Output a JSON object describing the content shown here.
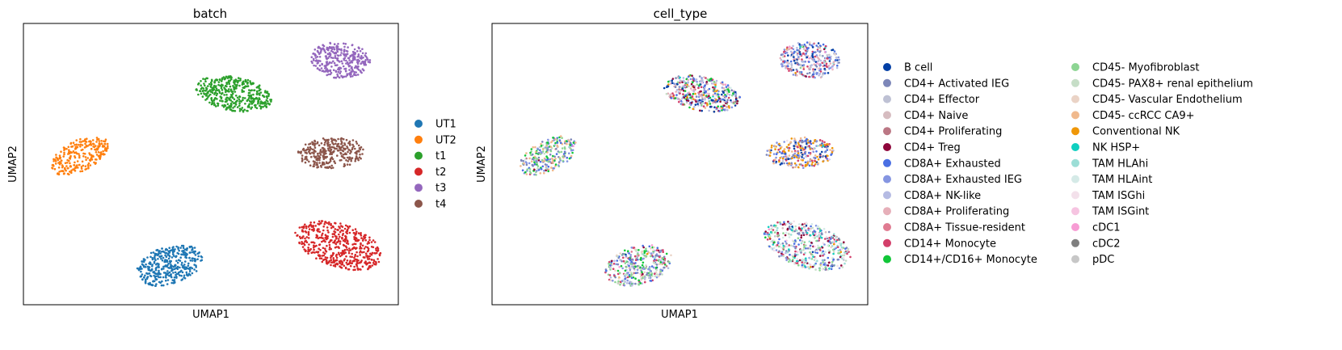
{
  "colors": {
    "background": "#ffffff",
    "axis": "#000000"
  },
  "chart_data": [
    {
      "type": "scatter",
      "title": "batch",
      "xlabel": "UMAP1",
      "ylabel": "UMAP2",
      "grid": false,
      "legend_position": "right",
      "legend": [
        {
          "label": "UT1",
          "color": "#1f77b4"
        },
        {
          "label": "UT2",
          "color": "#ff7f0e"
        },
        {
          "label": "t1",
          "color": "#2ca02c"
        },
        {
          "label": "t2",
          "color": "#d62728"
        },
        {
          "label": "t3",
          "color": "#9467bd"
        },
        {
          "label": "t4",
          "color": "#8c564b"
        }
      ],
      "clusters": [
        {
          "label": "UT2",
          "center": [
            0.15,
            0.47
          ],
          "radii": [
            0.09,
            0.05
          ],
          "angle": -40,
          "n": 260
        },
        {
          "label": "t1",
          "center": [
            0.56,
            0.25
          ],
          "radii": [
            0.105,
            0.06
          ],
          "angle": 18,
          "n": 420
        },
        {
          "label": "t3",
          "center": [
            0.845,
            0.13
          ],
          "radii": [
            0.08,
            0.065
          ],
          "angle": 10,
          "n": 320
        },
        {
          "label": "t4",
          "center": [
            0.82,
            0.46
          ],
          "radii": [
            0.09,
            0.055
          ],
          "angle": -5,
          "n": 300
        },
        {
          "label": "t2",
          "center": [
            0.84,
            0.79
          ],
          "radii": [
            0.125,
            0.075
          ],
          "angle": 28,
          "n": 480
        },
        {
          "label": "UT1",
          "center": [
            0.39,
            0.86
          ],
          "radii": [
            0.095,
            0.065
          ],
          "angle": -30,
          "n": 380
        }
      ]
    },
    {
      "type": "scatter",
      "title": "cell_type",
      "xlabel": "UMAP1",
      "ylabel": "UMAP2",
      "grid": false,
      "legend_position": "right",
      "legend": [
        {
          "label": "B cell",
          "color": "#023fa5"
        },
        {
          "label": "CD4+ Activated IEG",
          "color": "#7d87b9"
        },
        {
          "label": "CD4+ Effector",
          "color": "#bec1d4"
        },
        {
          "label": "CD4+ Naive",
          "color": "#d6bcc0"
        },
        {
          "label": "CD4+ Proliferating",
          "color": "#bb7784"
        },
        {
          "label": "CD4+ Treg",
          "color": "#8e063b"
        },
        {
          "label": "CD8A+ Exhausted",
          "color": "#4a6fe3"
        },
        {
          "label": "CD8A+ Exhausted IEG",
          "color": "#8595e1"
        },
        {
          "label": "CD8A+ NK-like",
          "color": "#b5bbe3"
        },
        {
          "label": "CD8A+ Proliferating",
          "color": "#e6afb9"
        },
        {
          "label": "CD8A+ Tissue-resident",
          "color": "#e07b91"
        },
        {
          "label": "CD14+ Monocyte",
          "color": "#d33f6a"
        },
        {
          "label": "CD14+/CD16+ Monocyte",
          "color": "#11c638"
        },
        {
          "label": "CD45- Myofibroblast",
          "color": "#8dd593"
        },
        {
          "label": "CD45- PAX8+ renal epithelium",
          "color": "#c6dec7"
        },
        {
          "label": "CD45- Vascular Endothelium",
          "color": "#ead3c6"
        },
        {
          "label": "CD45- ccRCC CA9+",
          "color": "#f0b98d"
        },
        {
          "label": "Conventional NK",
          "color": "#ef9708"
        },
        {
          "label": "NK HSP+",
          "color": "#0fcfc0"
        },
        {
          "label": "TAM HLAhi",
          "color": "#9cded6"
        },
        {
          "label": "TAM HLAint",
          "color": "#d5eae7"
        },
        {
          "label": "TAM ISGhi",
          "color": "#f3e1eb"
        },
        {
          "label": "TAM ISGint",
          "color": "#f6c4e1"
        },
        {
          "label": "cDC1",
          "color": "#f79cd4"
        },
        {
          "label": "cDC2",
          "color": "#7f7f7f"
        },
        {
          "label": "pDC",
          "color": "#c7c7c7"
        }
      ]
    }
  ]
}
